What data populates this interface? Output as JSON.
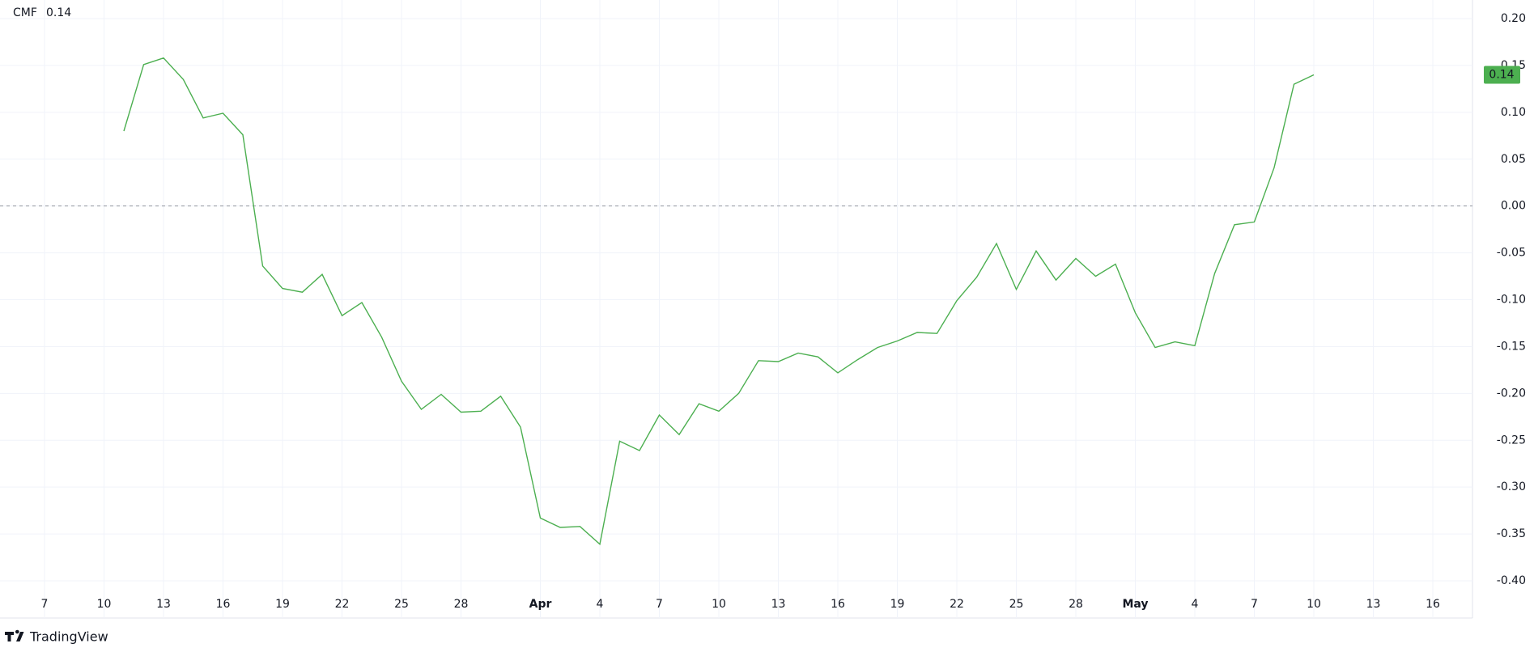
{
  "chart_data": {
    "type": "line",
    "brand": "TradingView",
    "x": [
      "03-11",
      "03-12",
      "03-13",
      "03-14",
      "03-15",
      "03-16",
      "03-17",
      "03-18",
      "03-19",
      "03-20",
      "03-21",
      "03-22",
      "03-23",
      "03-24",
      "03-25",
      "03-26",
      "03-27",
      "03-28",
      "03-29",
      "03-30",
      "03-31",
      "04-01",
      "04-02",
      "04-03",
      "04-04",
      "04-05",
      "04-06",
      "04-07",
      "04-08",
      "04-09",
      "04-10",
      "04-11",
      "04-12",
      "04-13",
      "04-14",
      "04-15",
      "04-16",
      "04-17",
      "04-18",
      "04-19",
      "04-20",
      "04-21",
      "04-22",
      "04-23",
      "04-24",
      "04-25",
      "04-26",
      "04-27",
      "04-28",
      "04-29",
      "04-30",
      "05-01",
      "05-02",
      "05-03",
      "05-04",
      "05-05",
      "05-06",
      "05-07",
      "05-08",
      "05-09",
      "05-10"
    ],
    "series": [
      {
        "name": "CMF",
        "color": "#4caf50",
        "values": [
          0.08,
          0.151,
          0.158,
          0.135,
          0.094,
          0.099,
          0.076,
          -0.064,
          -0.088,
          -0.092,
          -0.073,
          -0.117,
          -0.103,
          -0.14,
          -0.187,
          -0.217,
          -0.201,
          -0.22,
          -0.219,
          -0.203,
          -0.236,
          -0.333,
          -0.343,
          -0.342,
          -0.361,
          -0.251,
          -0.261,
          -0.223,
          -0.244,
          -0.211,
          -0.219,
          -0.2,
          -0.165,
          -0.166,
          -0.157,
          -0.161,
          -0.178,
          -0.164,
          -0.151,
          -0.144,
          -0.135,
          -0.136,
          -0.101,
          -0.076,
          -0.04,
          -0.089,
          -0.048,
          -0.079,
          -0.056,
          -0.075,
          -0.062,
          -0.114,
          -0.151,
          -0.145,
          -0.149,
          -0.072,
          -0.02,
          -0.017,
          0.041,
          0.13,
          0.14
        ]
      }
    ],
    "xlim": [
      "03-05",
      "05-18"
    ],
    "xticks": [
      {
        "value": "03-07",
        "label": "7"
      },
      {
        "value": "03-10",
        "label": "10"
      },
      {
        "value": "03-13",
        "label": "13"
      },
      {
        "value": "03-16",
        "label": "16"
      },
      {
        "value": "03-19",
        "label": "19"
      },
      {
        "value": "03-22",
        "label": "22"
      },
      {
        "value": "03-25",
        "label": "25"
      },
      {
        "value": "03-28",
        "label": "28"
      },
      {
        "value": "04-01",
        "label": "Apr"
      },
      {
        "value": "04-04",
        "label": "4"
      },
      {
        "value": "04-07",
        "label": "7"
      },
      {
        "value": "04-10",
        "label": "10"
      },
      {
        "value": "04-13",
        "label": "13"
      },
      {
        "value": "04-16",
        "label": "16"
      },
      {
        "value": "04-19",
        "label": "19"
      },
      {
        "value": "04-22",
        "label": "22"
      },
      {
        "value": "04-25",
        "label": "25"
      },
      {
        "value": "04-28",
        "label": "28"
      },
      {
        "value": "05-01",
        "label": "May"
      },
      {
        "value": "05-04",
        "label": "4"
      },
      {
        "value": "05-07",
        "label": "7"
      },
      {
        "value": "05-10",
        "label": "10"
      },
      {
        "value": "05-13",
        "label": "13"
      },
      {
        "value": "05-16",
        "label": "16"
      }
    ],
    "ylim": [
      -0.4,
      0.2
    ],
    "yticks": [
      {
        "value": 0.2,
        "label": "0.20"
      },
      {
        "value": 0.15,
        "label": "0.15"
      },
      {
        "value": 0.1,
        "label": "0.10"
      },
      {
        "value": 0.05,
        "label": "0.05"
      },
      {
        "value": 0,
        "label": "0.00"
      },
      {
        "value": -0.05,
        "label": "-0.05"
      },
      {
        "value": -0.1,
        "label": "-0.10"
      },
      {
        "value": -0.15,
        "label": "-0.15"
      },
      {
        "value": -0.2,
        "label": "-0.20"
      },
      {
        "value": -0.25,
        "label": "-0.25"
      },
      {
        "value": -0.3,
        "label": "-0.30"
      },
      {
        "value": -0.35,
        "label": "-0.35"
      },
      {
        "value": -0.4,
        "label": "-0.40"
      }
    ],
    "reference_lines": [
      0
    ],
    "grid": true
  }
}
